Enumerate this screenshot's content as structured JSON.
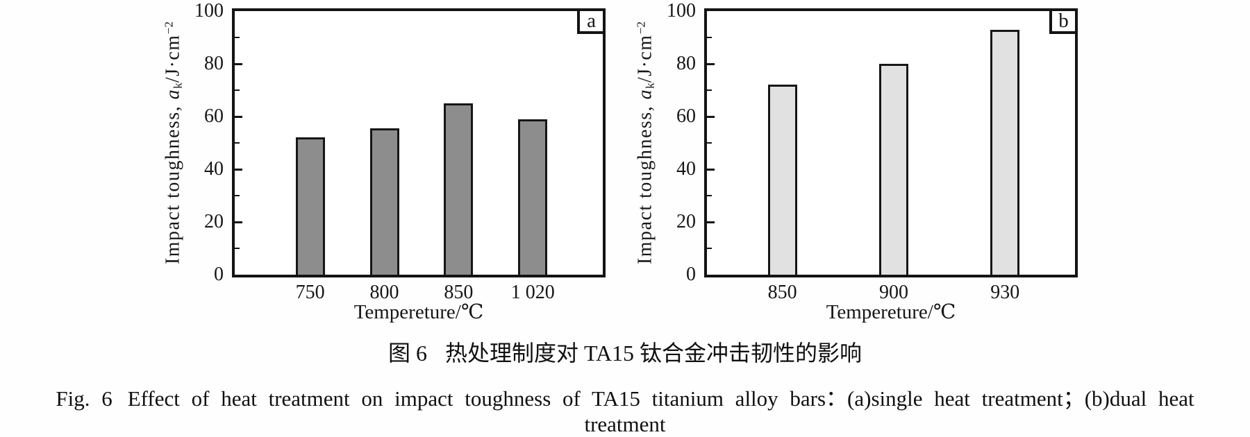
{
  "figure": {
    "caption_zh": {
      "label": "图 6",
      "text": "热处理制度对 TA15 钛合金冲击韧性的影响"
    },
    "caption_en": {
      "label": "Fig. 6",
      "text": "Effect of heat treatment on impact toughness of TA15 titanium alloy bars：(a)single heat treatment；(b)dual heat treatment"
    }
  },
  "chart_data": [
    {
      "type": "bar",
      "panel_label": "a",
      "series_name": "single heat treatment",
      "categories": [
        "750",
        "800",
        "850",
        "1 020"
      ],
      "values": [
        52,
        55.5,
        65,
        59
      ],
      "xlabel": "Tempereture/℃",
      "ylabel": "Impact toughness, aₖ/J·cm⁻²",
      "ylabel_parts": {
        "prefix": "Impact toughness, ",
        "symbol": "a",
        "sub": "k",
        "unit": "/J·cm",
        "sup": "−2"
      },
      "ylim": [
        0,
        100
      ],
      "yticks": [
        0,
        20,
        40,
        60,
        80,
        100
      ],
      "minor_ytick_step": 10,
      "grid": false,
      "legend": "none",
      "bar_color": "#8d8d8d",
      "bar_border_color": "#161616",
      "bar_span": [
        0.205,
        0.81
      ]
    },
    {
      "type": "bar",
      "panel_label": "b",
      "series_name": "dual heat treatment",
      "categories": [
        "850",
        "900",
        "930"
      ],
      "values": [
        72,
        80,
        93
      ],
      "xlabel": "Tempereture/℃",
      "ylabel": "Impact toughness, aₖ/J·cm⁻²",
      "ylabel_parts": {
        "prefix": "Impact toughness, ",
        "symbol": "a",
        "sub": "k",
        "unit": "/J·cm",
        "sup": "−2"
      },
      "ylim": [
        0,
        100
      ],
      "yticks": [
        0,
        20,
        40,
        60,
        80,
        100
      ],
      "minor_ytick_step": 10,
      "grid": false,
      "legend": "none",
      "bar_color": "#e1e1e1",
      "bar_border_color": "#161616",
      "bar_span": [
        0.205,
        0.81
      ]
    }
  ]
}
